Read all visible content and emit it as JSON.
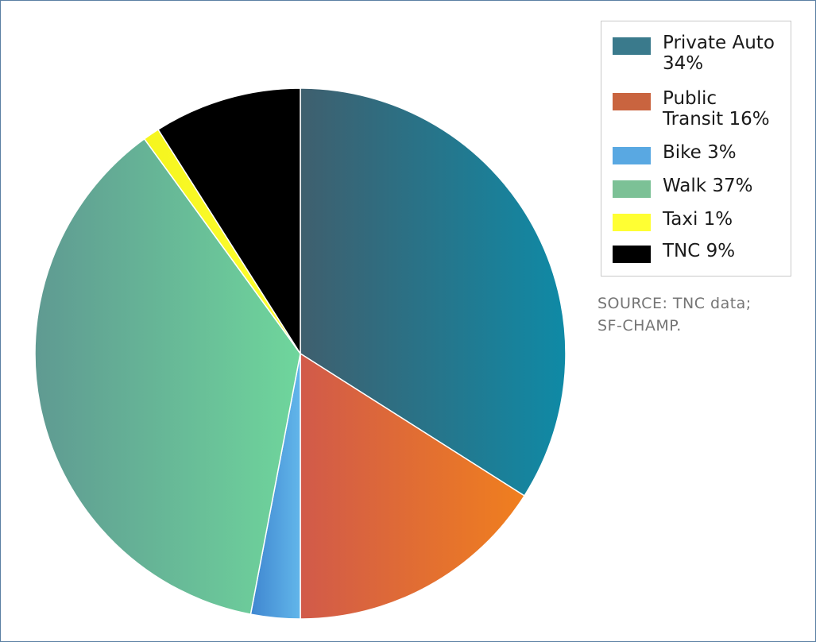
{
  "chart_data": {
    "type": "pie",
    "title": "",
    "slices": [
      {
        "label": "Private Auto 34%",
        "value": 34,
        "color_start": "#3f5f6e",
        "color_end": "#0f8aa6"
      },
      {
        "label": "Public Transit 16%",
        "value": 16,
        "color_start": "#d15a4a",
        "color_end": "#f07f1e"
      },
      {
        "label": "Bike 3%",
        "value": 3,
        "color_start": "#3f86d0",
        "color_end": "#62b6ea"
      },
      {
        "label": "Walk 37%",
        "value": 37,
        "color_start": "#5f9a92",
        "color_end": "#6fd69c"
      },
      {
        "label": "Taxi 1%",
        "value": 1,
        "color_start": "#f5f51e",
        "color_end": "#ffff33"
      },
      {
        "label": "TNC 9%",
        "value": 9,
        "color_start": "#000000",
        "color_end": "#000000"
      }
    ],
    "legend": {
      "placement": "top-right",
      "items": [
        {
          "label": "Private Auto 34%",
          "color": "#3a7a8c"
        },
        {
          "label": "Public Transit 16%",
          "color": "#c9643f"
        },
        {
          "label": "Bike 3%",
          "color": "#59a8e2"
        },
        {
          "label": "Walk 37%",
          "color": "#7cc196"
        },
        {
          "label": "Taxi 1%",
          "color": "#ffff33"
        },
        {
          "label": "TNC 9%",
          "color": "#000000"
        }
      ]
    },
    "annotation": {
      "source_line1": "SOURCE: TNC data;",
      "source_line2": "SF-CHAMP."
    }
  }
}
